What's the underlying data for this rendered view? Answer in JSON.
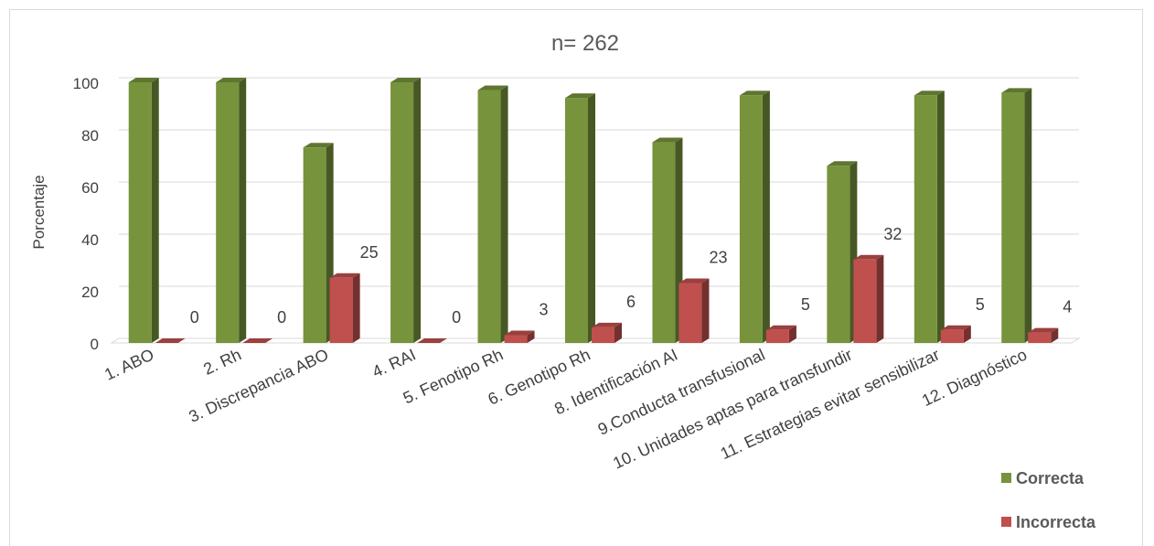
{
  "chart_data": {
    "type": "bar",
    "title": "n= 262",
    "xlabel": "",
    "ylabel": "Porcentaje",
    "ylim": [
      0,
      100
    ],
    "yticks": [
      0,
      20,
      40,
      60,
      80,
      100
    ],
    "grid": true,
    "legend_position": "bottom-right",
    "categories": [
      "1. ABO",
      "2. Rh",
      "3. Discrepancia ABO",
      "4. RAI",
      "5. Fenotipo Rh",
      "6. Genotipo Rh",
      "8. Identificación AI",
      "9.Conducta transfusional",
      "10. Unidades aptas para transfundir",
      "11. Estrategias evitar sensibilizar",
      "12. Diagnóstico"
    ],
    "series": [
      {
        "name": "Correcta",
        "color": "#77933c",
        "values": [
          100,
          100,
          75,
          100,
          97,
          94,
          77,
          95,
          68,
          95,
          96
        ]
      },
      {
        "name": "Incorrecta",
        "color": "#c0504d",
        "values": [
          0,
          0,
          25,
          0,
          3,
          6,
          23,
          5,
          32,
          5,
          4
        ],
        "labels": [
          "0",
          "0",
          "25",
          "0",
          "3",
          "6",
          "23",
          "5",
          "32",
          "5",
          "4"
        ]
      }
    ]
  }
}
